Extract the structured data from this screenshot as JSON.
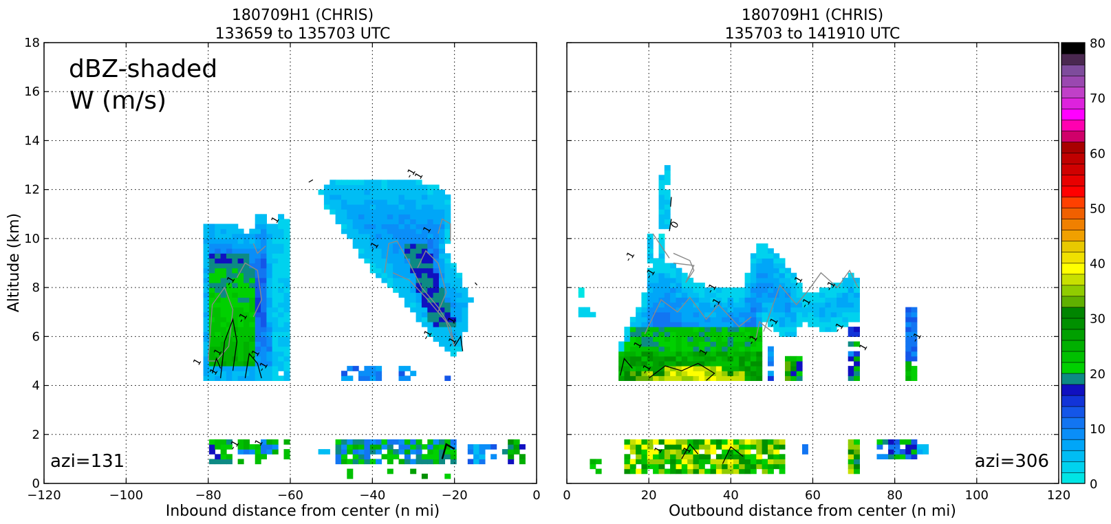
{
  "chart_data": [
    {
      "type": "heatmap",
      "title": "180709H1 (CHRIS)",
      "subtitle": "133659 to 135703 UTC",
      "xlabel": "Inbound distance from center (n mi)",
      "ylabel": "Altitude (km)",
      "xlim": [
        -120,
        0
      ],
      "ylim": [
        0,
        18
      ],
      "xticks": [
        "−120",
        "−100",
        "−80",
        "−60",
        "−40",
        "−20",
        "0"
      ],
      "yticks": [
        "0",
        "2",
        "4",
        "6",
        "8",
        "10",
        "12",
        "14",
        "16",
        "18"
      ],
      "grid": true,
      "annotations": {
        "label1": "dBZ-shaded",
        "label2": "W (m/s)",
        "azimuth": "azi=131"
      },
      "contour_labels": [
        "1",
        "1",
        "1",
        "-1",
        "-1",
        "-1",
        "-1",
        "1",
        "-1",
        "-1",
        "1",
        "1",
        "-1",
        "-1",
        "1",
        "-1",
        "1"
      ],
      "echo_regions": [
        {
          "x": [
            -81,
            -61
          ],
          "y": [
            4.2,
            11.2
          ],
          "dbz": "10-25"
        },
        {
          "x": [
            -55,
            -17
          ],
          "y": [
            5.2,
            12.5
          ],
          "dbz": "5-20"
        },
        {
          "x": [
            -47,
            -38
          ],
          "y": [
            4.2,
            4.9
          ],
          "dbz": "5-15"
        },
        {
          "x": [
            -34,
            -30
          ],
          "y": [
            4.2,
            4.9
          ],
          "dbz": "5-15"
        },
        {
          "x": [
            -80,
            -3
          ],
          "y": [
            0.6,
            1.9
          ],
          "dbz": "5-30"
        }
      ]
    },
    {
      "type": "heatmap",
      "title": "180709H1 (CHRIS)",
      "subtitle": "135703 to 141910 UTC",
      "xlabel": "Outbound distance from center (n mi)",
      "ylabel": "",
      "xlim": [
        0,
        120
      ],
      "ylim": [
        0,
        18
      ],
      "xticks": [
        "0",
        "20",
        "40",
        "60",
        "80",
        "100",
        "120"
      ],
      "yticks": [],
      "grid": true,
      "annotations": {
        "azimuth": "azi=306"
      },
      "contour_labels": [
        "-1",
        "0",
        "-1",
        "-1",
        "-1",
        "-1",
        "-1",
        "1",
        "-1",
        "1",
        "-1",
        "-1",
        "-1",
        "-1",
        "1",
        "-1",
        "1",
        "1"
      ],
      "echo_regions": [
        {
          "x": [
            12,
            72
          ],
          "y": [
            4.2,
            10.0
          ],
          "dbz": "5-35"
        },
        {
          "x": [
            22,
            26
          ],
          "y": [
            9.5,
            13.1
          ],
          "dbz": "0-10"
        },
        {
          "x": [
            82,
            86
          ],
          "y": [
            4.2,
            7.2
          ],
          "dbz": "5-25"
        },
        {
          "x": [
            12,
            53
          ],
          "y": [
            0.4,
            1.9
          ],
          "dbz": "15-40"
        }
      ]
    }
  ],
  "colorbar": {
    "min": 0,
    "max": 80,
    "step": 2,
    "tick_labels": [
      "0",
      "10",
      "20",
      "30",
      "40",
      "50",
      "60",
      "70",
      "80"
    ],
    "colors": [
      "#00e5e5",
      "#00d2ee",
      "#00bdf4",
      "#00a6f8",
      "#0a8ef8",
      "#1275f2",
      "#1456e8",
      "#1234d8",
      "#1010c0",
      "#0d8a84",
      "#00d000",
      "#00c000",
      "#00b000",
      "#00a000",
      "#009000",
      "#008500",
      "#60b000",
      "#90cc00",
      "#c8e000",
      "#ffff00",
      "#f0e000",
      "#e8c800",
      "#f0a000",
      "#f08000",
      "#f06000",
      "#ff4000",
      "#ff0000",
      "#e80000",
      "#d00000",
      "#c00000",
      "#a80000",
      "#d0006a",
      "#ff00b0",
      "#ff00ff",
      "#dd22dd",
      "#c040c8",
      "#9a48b0",
      "#7e4c9c",
      "#4a2850",
      "#000000"
    ]
  }
}
